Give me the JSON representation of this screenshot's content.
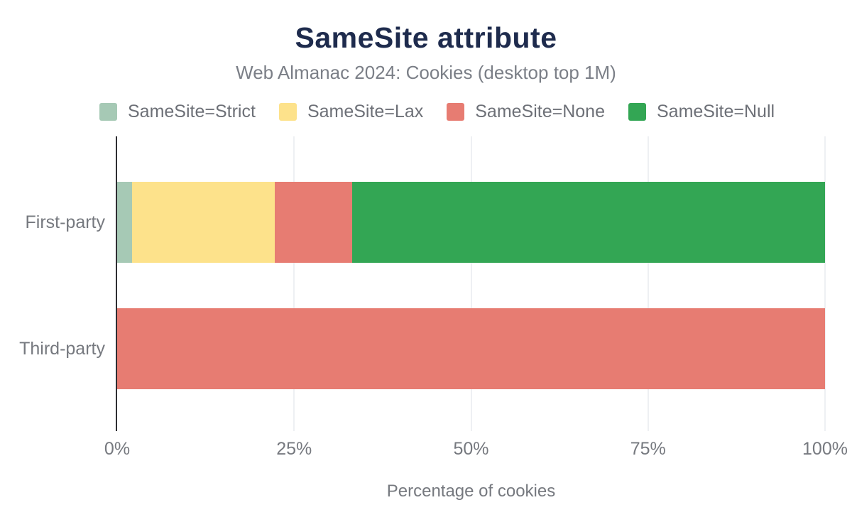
{
  "chart_data": {
    "type": "bar",
    "orientation": "horizontal",
    "stacked": true,
    "title": "SameSite attribute",
    "subtitle": "Web Almanac 2024: Cookies (desktop top 1M)",
    "xlabel": "Percentage of cookies",
    "categories": [
      "First-party",
      "Third-party"
    ],
    "series": [
      {
        "name": "SameSite=Strict",
        "color": "#a6c9b5",
        "values": [
          2.1,
          0
        ]
      },
      {
        "name": "SameSite=Lax",
        "color": "#fde28b",
        "values": [
          20.2,
          0
        ]
      },
      {
        "name": "SameSite=None",
        "color": "#e77c72",
        "values": [
          10.9,
          100
        ]
      },
      {
        "name": "SameSite=Null",
        "color": "#33a654",
        "values": [
          66.8,
          0
        ]
      }
    ],
    "xlim": [
      0,
      100
    ],
    "xtick_values": [
      0,
      25,
      50,
      75,
      100
    ],
    "xtick_labels": [
      "0%",
      "25%",
      "50%",
      "75%",
      "100%"
    ],
    "grid": true,
    "legend_position": "top",
    "title_color": "#1e2b4d",
    "axis_line_color": "#2e2e33",
    "gridline_color": "#eef0f3"
  }
}
